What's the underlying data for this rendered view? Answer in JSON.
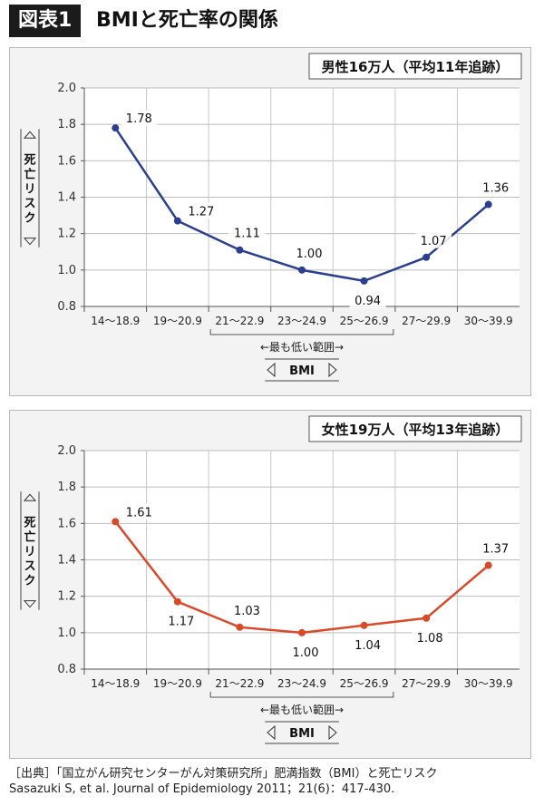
{
  "header": {
    "badge": "図表1",
    "title": "BMIと死亡率の関係"
  },
  "chart_data": [
    {
      "type": "line",
      "title": "男性16万人（平均11年追跡）",
      "ylabel": "死亡リスク",
      "xlabel": "BMI",
      "note": "←最も低い範囲→",
      "categories": [
        "14～18.9",
        "19～20.9",
        "21～22.9",
        "23～24.9",
        "25～26.9",
        "27～29.9",
        "30～39.9"
      ],
      "series": [
        {
          "values": [
            1.78,
            1.27,
            1.11,
            1.0,
            0.94,
            1.07,
            1.36
          ],
          "color": "#2a3f8f"
        }
      ],
      "ylim": [
        0.8,
        2.0
      ],
      "yticks": [
        "0.8",
        "1.0",
        "1.2",
        "1.4",
        "1.6",
        "1.8",
        "2.0"
      ],
      "grid": true,
      "lowest_range": [
        "21～22.9",
        "25～26.9"
      ]
    },
    {
      "type": "line",
      "title": "女性19万人（平均13年追跡）",
      "ylabel": "死亡リスク",
      "xlabel": "BMI",
      "note": "←最も低い範囲→",
      "categories": [
        "14～18.9",
        "19～20.9",
        "21～22.9",
        "23～24.9",
        "25～26.9",
        "27～29.9",
        "30～39.9"
      ],
      "series": [
        {
          "values": [
            1.61,
            1.17,
            1.03,
            1.0,
            1.04,
            1.08,
            1.37
          ],
          "color": "#d9492a"
        }
      ],
      "ylim": [
        0.8,
        2.0
      ],
      "yticks": [
        "0.8",
        "1.0",
        "1.2",
        "1.4",
        "1.6",
        "1.8",
        "2.0"
      ],
      "grid": true,
      "lowest_range": [
        "21～22.9",
        "25～26.9"
      ]
    }
  ],
  "source": {
    "line1": "［出典］「国立がん研究センターがん対策研究所」肥満指数（BMI）と死亡リスク",
    "line2": "Sasazuki S, et al. Journal of Epidemiology 2011；21(6)：417-430."
  }
}
